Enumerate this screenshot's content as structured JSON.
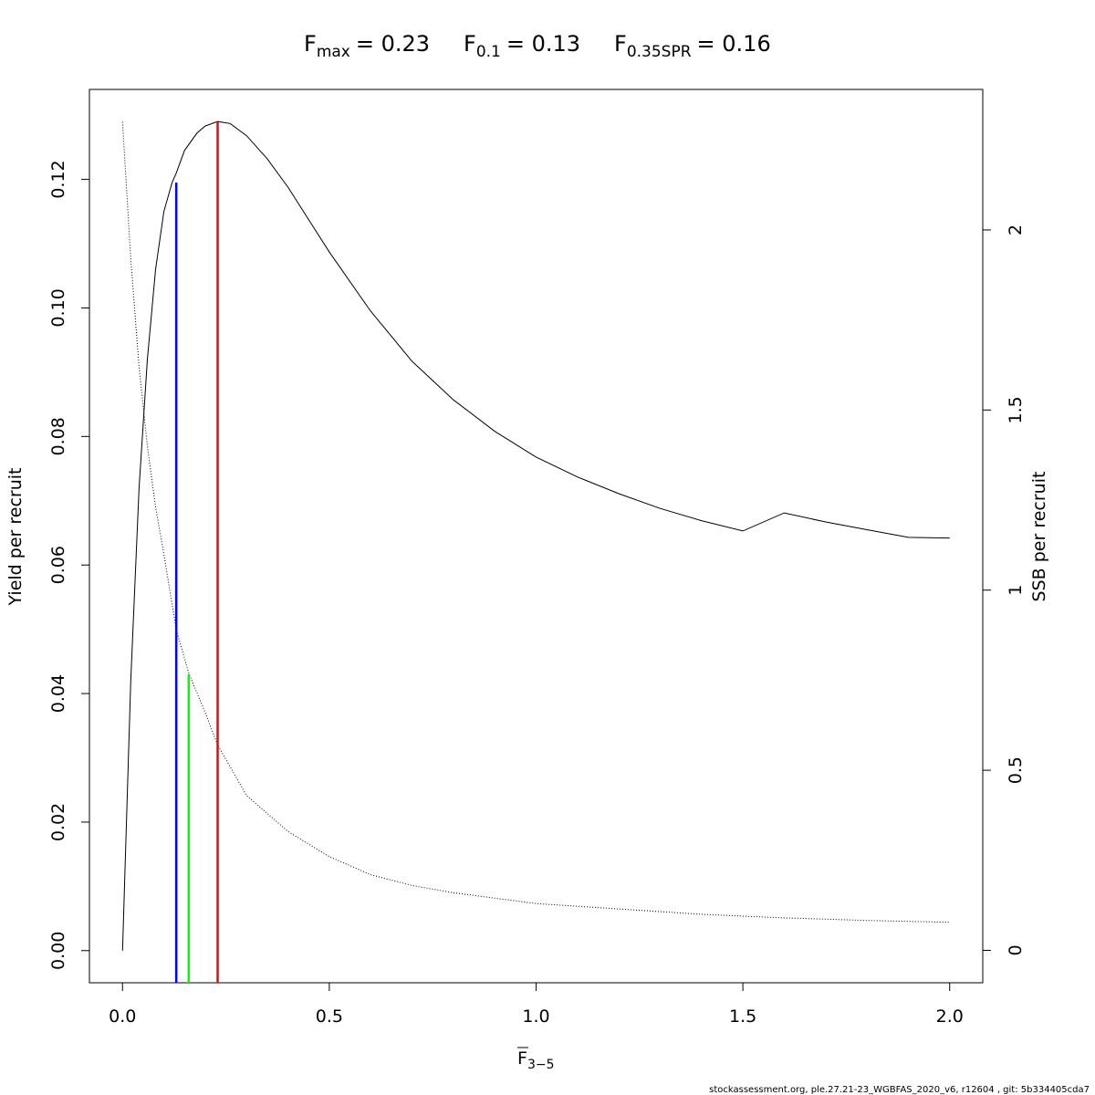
{
  "chart_data": {
    "type": "line",
    "title": {
      "fmax": {
        "base": "F",
        "sub": "max",
        "value": "= 0.23"
      },
      "f01": {
        "base": "F",
        "sub": "0.1",
        "value": "= 0.13"
      },
      "fspr": {
        "base": "F",
        "sub": "0.35SPR",
        "value": "= 0.16"
      }
    },
    "xlabel": {
      "base": "F",
      "sub": "3−5"
    },
    "ylabel_left": "Yield per recruit",
    "ylabel_right": "SSB per recruit",
    "xlim": [
      -0.08,
      2.08
    ],
    "ylim_left": [
      -0.005,
      0.134
    ],
    "ylim_right": [
      -0.09,
      2.39
    ],
    "xticks": [
      {
        "v": 0.0,
        "label": "0.0"
      },
      {
        "v": 0.5,
        "label": "0.5"
      },
      {
        "v": 1.0,
        "label": "1.0"
      },
      {
        "v": 1.5,
        "label": "1.5"
      },
      {
        "v": 2.0,
        "label": "2.0"
      }
    ],
    "yticks_left": [
      {
        "v": 0.0,
        "label": "0.00"
      },
      {
        "v": 0.02,
        "label": "0.02"
      },
      {
        "v": 0.04,
        "label": "0.04"
      },
      {
        "v": 0.06,
        "label": "0.06"
      },
      {
        "v": 0.08,
        "label": "0.08"
      },
      {
        "v": 0.1,
        "label": "0.10"
      },
      {
        "v": 0.12,
        "label": "0.12"
      }
    ],
    "yticks_right": [
      {
        "v": 0,
        "label": "0"
      },
      {
        "v": 0.5,
        "label": "0.5"
      },
      {
        "v": 1,
        "label": "1"
      },
      {
        "v": 1.5,
        "label": "1.5"
      },
      {
        "v": 2,
        "label": "2"
      }
    ],
    "series": [
      {
        "axis": "left",
        "style": "solid",
        "color": "#000000",
        "x": [
          0.0,
          0.02,
          0.04,
          0.06,
          0.08,
          0.1,
          0.12,
          0.13,
          0.15,
          0.18,
          0.2,
          0.23,
          0.26,
          0.3,
          0.35,
          0.4,
          0.5,
          0.6,
          0.7,
          0.8,
          0.9,
          1.0,
          1.1,
          1.2,
          1.3,
          1.4,
          1.5,
          1.6,
          1.7,
          1.8,
          1.9,
          2.0
        ],
        "y": [
          0.0,
          0.042,
          0.072,
          0.092,
          0.106,
          0.115,
          0.1195,
          0.121,
          0.1245,
          0.1272,
          0.1283,
          0.129,
          0.1287,
          0.1268,
          0.1232,
          0.1188,
          0.1087,
          0.0995,
          0.0917,
          0.0857,
          0.0808,
          0.0768,
          0.0737,
          0.0711,
          0.0688,
          0.0669,
          0.0653,
          0.0681,
          0.0667,
          0.0655,
          0.0643,
          0.0642
        ]
      },
      {
        "axis": "right",
        "style": "dotted",
        "color": "#000000",
        "x": [
          0.0,
          0.02,
          0.04,
          0.06,
          0.08,
          0.1,
          0.13,
          0.16,
          0.2,
          0.23,
          0.3,
          0.4,
          0.5,
          0.6,
          0.7,
          0.8,
          1.0,
          1.2,
          1.4,
          1.6,
          1.8,
          2.0
        ],
        "y": [
          2.3,
          1.92,
          1.62,
          1.4,
          1.23,
          1.1,
          0.89,
          0.77,
          0.66,
          0.57,
          0.43,
          0.33,
          0.26,
          0.21,
          0.18,
          0.16,
          0.13,
          0.115,
          0.1,
          0.09,
          0.083,
          0.078
        ]
      }
    ],
    "reference_lines": [
      {
        "x": 0.13,
        "y_top": 0.1195,
        "color": "#0000ff"
      },
      {
        "x": 0.16,
        "y_top": 0.043,
        "color": "#00ff00"
      },
      {
        "x": 0.23,
        "y_top": 0.129,
        "color": "#ff0000"
      }
    ]
  },
  "footer": "stockassessment.org, ple.27.21-23_WGBFAS_2020_v6, r12604 , git: 5b334405cda7"
}
